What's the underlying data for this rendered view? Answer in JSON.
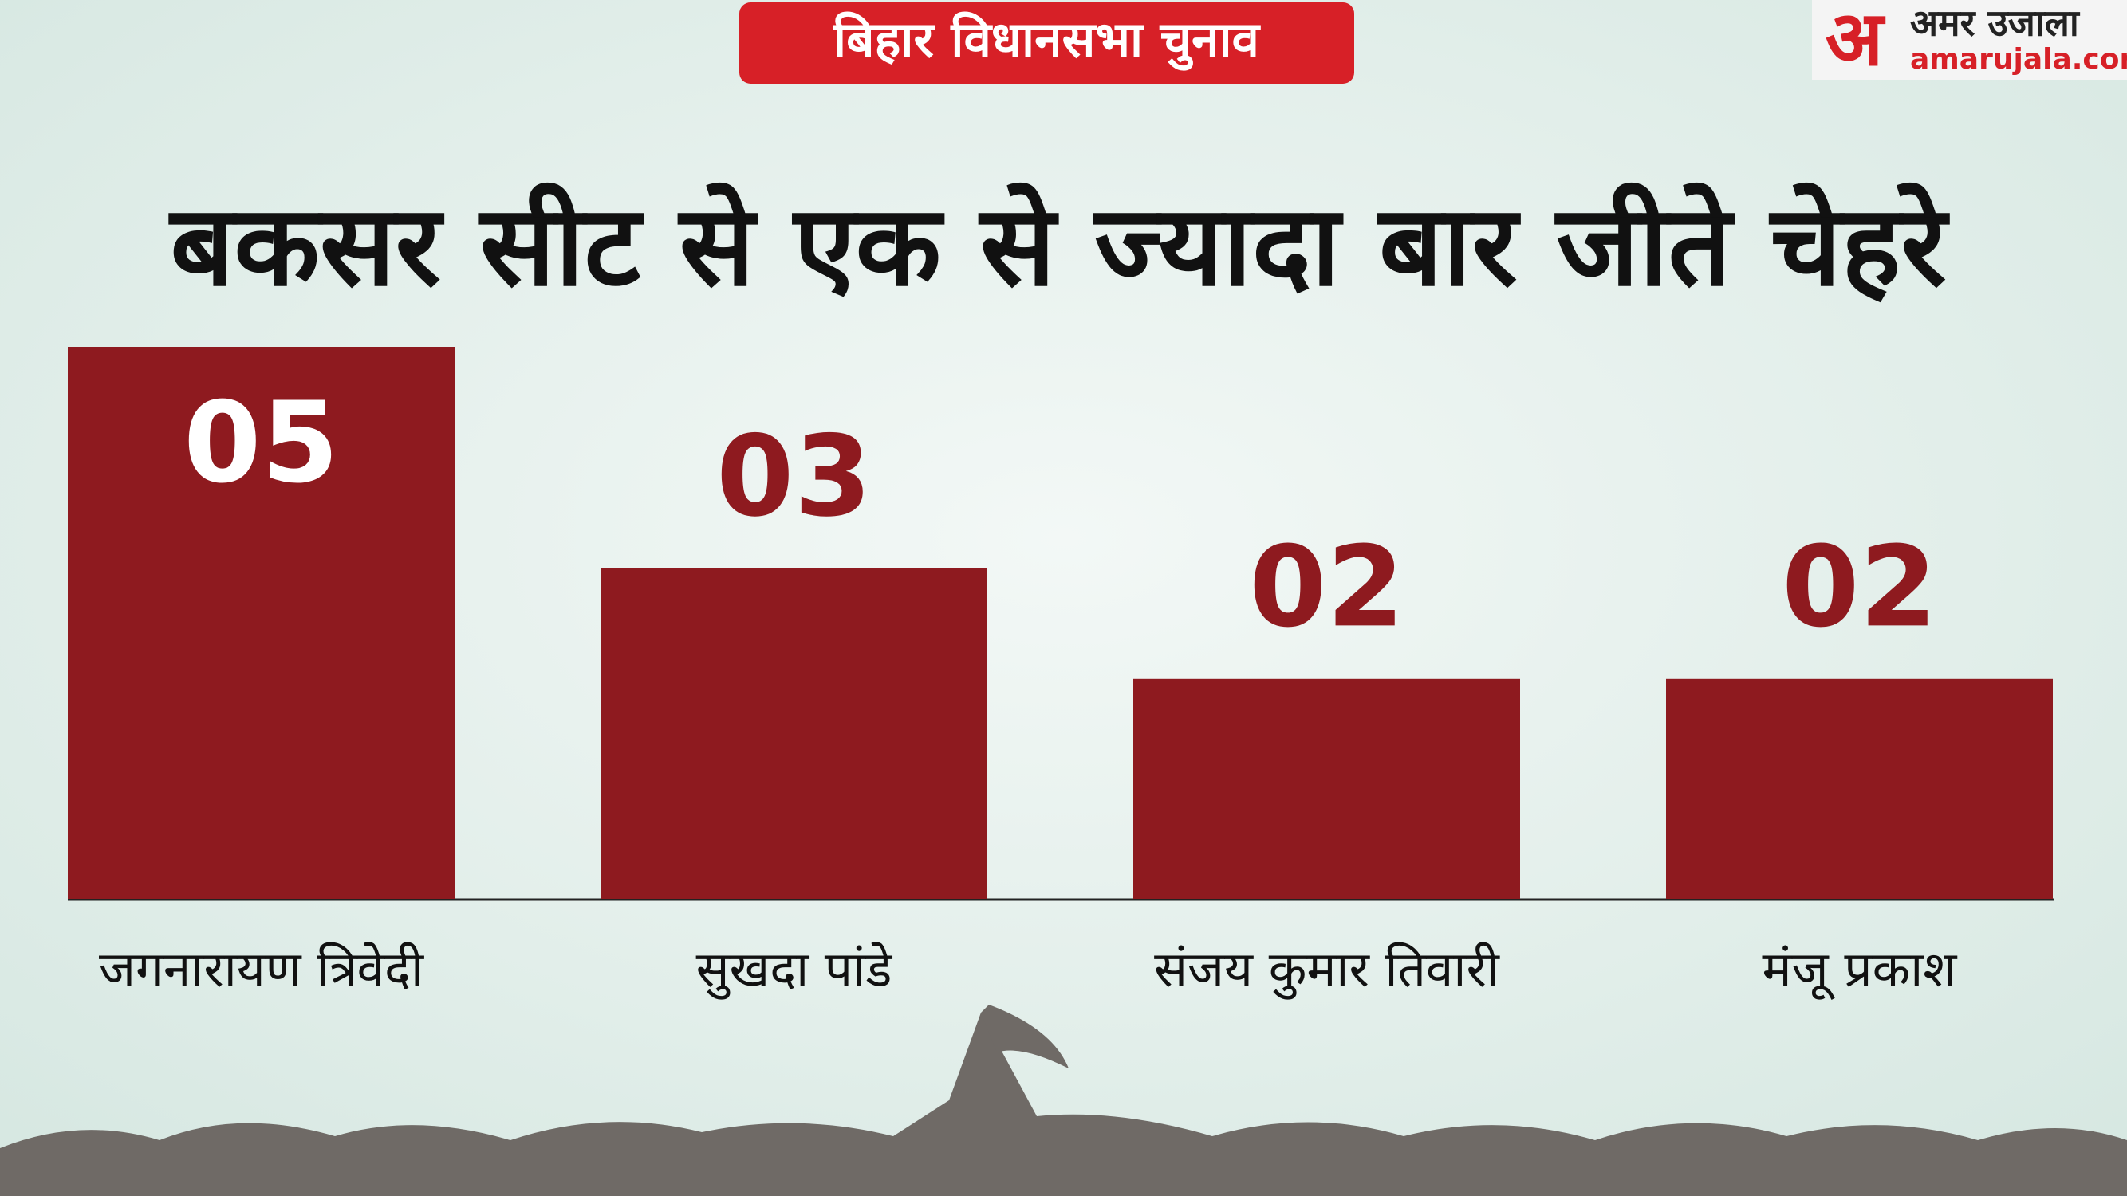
{
  "badge": "बिहार विधानसभा चुनाव",
  "brand": {
    "mark": "अ",
    "name": "अमर उजाला",
    "site": "amarujala.com"
  },
  "chart_data": {
    "type": "bar",
    "title": "बकसर सीट से एक से ज्यादा बार जीते चेहरे",
    "categories": [
      "जगनारायण त्रिवेदी",
      "सुखदा पांडे",
      "संजय कुमार तिवारी",
      "मंजू प्रकाश"
    ],
    "values": [
      5,
      3,
      2,
      2
    ],
    "value_labels": [
      "05",
      "03",
      "02",
      "02"
    ],
    "color": "#8e1a1f",
    "ylim": [
      0,
      5
    ]
  }
}
